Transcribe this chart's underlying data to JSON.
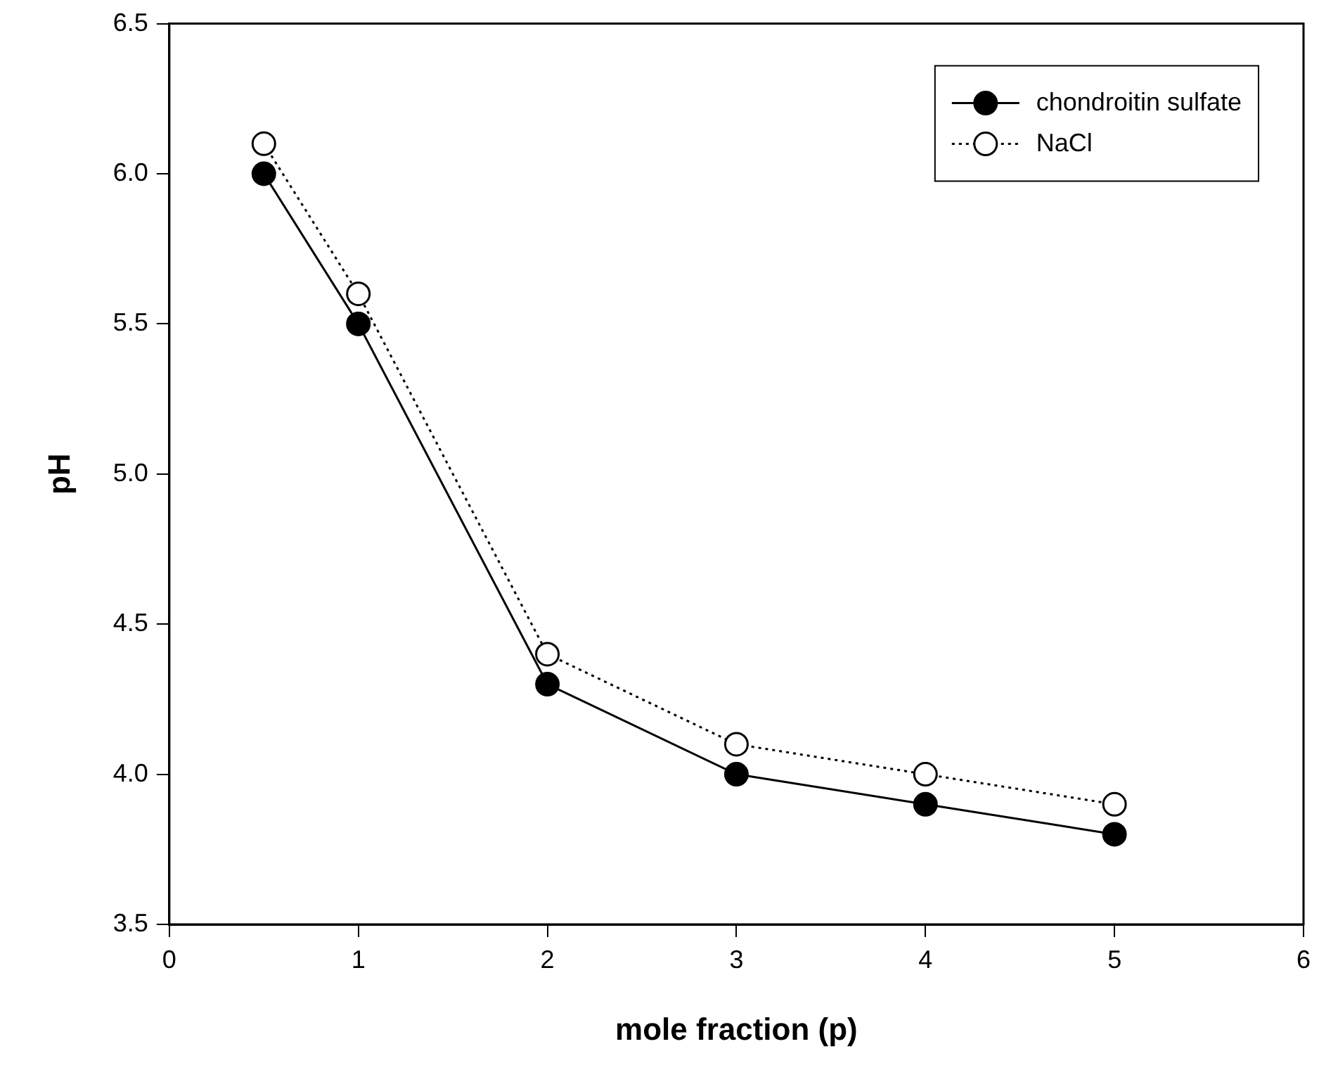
{
  "chart_data": {
    "type": "line",
    "xlabel": "mole fraction (p)",
    "ylabel": "pH",
    "x": [
      0.5,
      1,
      2,
      3,
      4,
      5
    ],
    "series": [
      {
        "name": "chondroitin sulfate",
        "color": "#000000",
        "line_style": "solid",
        "values": [
          6.0,
          5.5,
          4.3,
          4.0,
          3.9,
          3.8
        ]
      },
      {
        "name": "NaCl",
        "color": "#000000",
        "line_style": "dotted",
        "values": [
          6.1,
          5.6,
          4.4,
          4.1,
          4.0,
          3.9
        ]
      }
    ],
    "xlim": [
      0,
      6
    ],
    "xticks": [
      0,
      1,
      2,
      3,
      4,
      5,
      6
    ],
    "ylim": [
      3.5,
      6.5
    ],
    "yticks": [
      {
        "value": 3.5,
        "label": "3.5"
      },
      {
        "value": 4,
        "label": "4.0"
      },
      {
        "value": 4.5,
        "label": "4.5"
      },
      {
        "value": 5,
        "label": "5.0"
      },
      {
        "value": 5.5,
        "label": "5.5"
      },
      {
        "value": 6,
        "label": "6.0"
      },
      {
        "value": 6.5,
        "label": "6.5"
      }
    ],
    "grid": false,
    "legend": "top right",
    "marker": "circle"
  }
}
